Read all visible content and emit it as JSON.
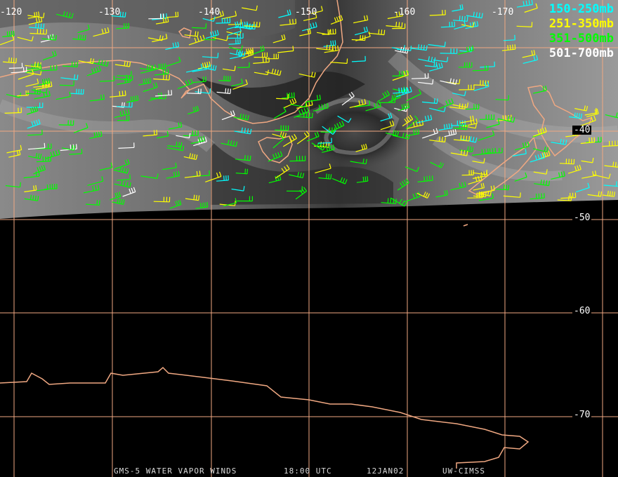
{
  "map": {
    "lon_labels": [
      "-120",
      "-130",
      "-140",
      "-150",
      "-160",
      "-170"
    ],
    "lat_labels": [
      "-40",
      "-50",
      "-60",
      "-70"
    ],
    "colors": {
      "grid": "#f0a882",
      "coast": "#f0a882",
      "background": "#000000"
    }
  },
  "legend": [
    {
      "label": "150-250mb",
      "color": "#00ffff"
    },
    {
      "label": "251-350mb",
      "color": "#ffff00"
    },
    {
      "label": "351-500mb",
      "color": "#00ff00"
    },
    {
      "label": "501-700mb",
      "color": "#ffffff"
    }
  ],
  "footer": {
    "satellite": "GMS-5 WATER VAPOR WINDS",
    "time": "18:00 UTC",
    "date": "12JAN02",
    "source": "UW-CIMSS"
  }
}
